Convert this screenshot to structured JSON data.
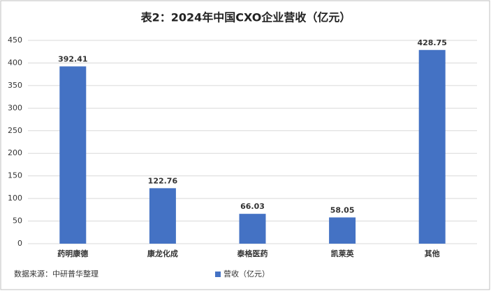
{
  "chart_data": {
    "type": "bar",
    "title": "表2：2024年中国CXO企业营收（亿元）",
    "categories": [
      "药明康德",
      "康龙化成",
      "泰格医药",
      "凯莱英",
      "其他"
    ],
    "series": [
      {
        "name": "营收（亿元）",
        "color": "#4472c4",
        "values": [
          392.41,
          122.76,
          66.03,
          58.05,
          428.75
        ]
      }
    ],
    "ylim": [
      0,
      450
    ],
    "yticks": [
      0,
      50,
      100,
      150,
      200,
      250,
      300,
      350,
      400,
      450
    ],
    "grid": true,
    "source": "数据来源：中研普华整理",
    "legend": "bottom"
  }
}
